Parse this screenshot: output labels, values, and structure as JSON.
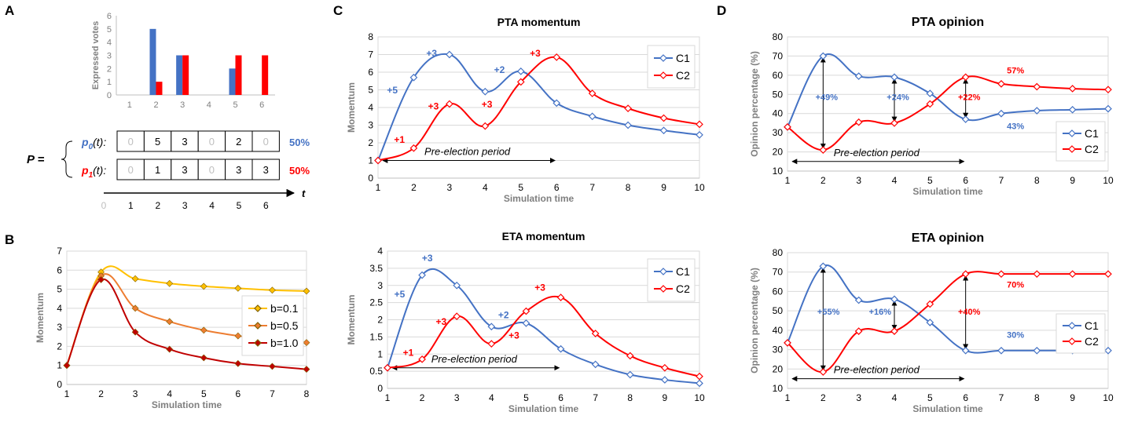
{
  "colors": {
    "blue": "#4472c4",
    "red": "#ff0000",
    "gold": "#ffc000",
    "orange": "#ed7d31",
    "darkred": "#c00000",
    "grid": "#d9d9d9",
    "gray": "#7f7f7f"
  },
  "panel_labels": [
    "A",
    "B",
    "C",
    "D"
  ],
  "panelA": {
    "matrix_label": "P =",
    "rows": [
      {
        "label": "p",
        "sub": "0",
        "arg": "(t):",
        "cells": [
          "0",
          "5",
          "3",
          "0",
          "2",
          "0"
        ],
        "pct": "50%",
        "color": "#4472c4"
      },
      {
        "label": "p",
        "sub": "1",
        "arg": "(t):",
        "cells": [
          "0",
          "1",
          "3",
          "0",
          "3",
          "3"
        ],
        "pct": "50%",
        "color": "#ff0000"
      }
    ],
    "time_axis": {
      "ticks": [
        "0",
        "1",
        "2",
        "3",
        "4",
        "5",
        "6"
      ],
      "label": "t"
    }
  },
  "pre_election_label": "Pre-election period",
  "chart_data": [
    {
      "id": "A",
      "type": "bar",
      "title": "",
      "xlabel": "",
      "ylabel": "Expressed votes",
      "categories": [
        "1",
        "2",
        "3",
        "4",
        "5",
        "6"
      ],
      "ylim": [
        0,
        6
      ],
      "yticks": [
        0,
        1,
        2,
        3,
        4,
        5,
        6
      ],
      "grid": false,
      "series": [
        {
          "color": "#4472c4",
          "values": [
            0,
            5,
            3,
            0,
            2,
            0
          ]
        },
        {
          "color": "#ff0000",
          "values": [
            0,
            1,
            3,
            0,
            3,
            3
          ]
        }
      ]
    },
    {
      "id": "B",
      "type": "line",
      "title": "",
      "xlabel": "Simulation time",
      "ylabel": "Momentum",
      "x": [
        1,
        2,
        3,
        4,
        5,
        6,
        7,
        8
      ],
      "xlim": [
        1,
        8
      ],
      "ylim": [
        0,
        7
      ],
      "yticks": [
        0,
        1,
        2,
        3,
        4,
        5,
        6,
        7
      ],
      "grid": true,
      "legend": "right",
      "series": [
        {
          "name": "b=0.1",
          "color": "#ffc000",
          "values": [
            1,
            5.9,
            5.55,
            5.3,
            5.15,
            5.05,
            4.95,
            4.9
          ]
        },
        {
          "name": "b=0.5",
          "color": "#ed7d31",
          "values": [
            1,
            5.7,
            4.0,
            3.3,
            2.85,
            2.55,
            2.35,
            2.2
          ]
        },
        {
          "name": "b=1.0",
          "color": "#c00000",
          "values": [
            1,
            5.5,
            2.75,
            1.85,
            1.4,
            1.1,
            0.95,
            0.8
          ]
        }
      ]
    },
    {
      "id": "C-top",
      "type": "line",
      "title": "PTA momentum",
      "xlabel": "Simulation time",
      "ylabel": "Momentum",
      "x": [
        1,
        2,
        3,
        4,
        5,
        6,
        7,
        8,
        9,
        10
      ],
      "xlim": [
        1,
        10
      ],
      "ylim": [
        0,
        8
      ],
      "yticks": [
        0,
        1,
        2,
        3,
        4,
        5,
        6,
        7,
        8
      ],
      "grid": true,
      "legend": "top-right",
      "series": [
        {
          "name": "C1",
          "color": "#4472c4",
          "values": [
            1,
            5.7,
            7.0,
            4.9,
            6.05,
            4.25,
            3.5,
            3.0,
            2.7,
            2.45
          ]
        },
        {
          "name": "C2",
          "color": "#ff0000",
          "values": [
            1,
            1.7,
            4.2,
            2.95,
            5.45,
            6.85,
            4.8,
            3.95,
            3.4,
            3.05
          ]
        }
      ],
      "annotations": [
        {
          "text": "+5",
          "color": "#4472c4",
          "x": 1.4,
          "y": 4.8
        },
        {
          "text": "+3",
          "color": "#4472c4",
          "x": 2.5,
          "y": 6.9
        },
        {
          "text": "+2",
          "color": "#4472c4",
          "x": 4.4,
          "y": 5.95
        },
        {
          "text": "+1",
          "color": "#ff0000",
          "x": 1.6,
          "y": 2.0
        },
        {
          "text": "+3",
          "color": "#ff0000",
          "x": 2.55,
          "y": 3.9
        },
        {
          "text": "+3",
          "color": "#ff0000",
          "x": 4.05,
          "y": 4.0
        },
        {
          "text": "+3",
          "color": "#ff0000",
          "x": 5.4,
          "y": 6.9
        }
      ]
    },
    {
      "id": "C-bottom",
      "type": "line",
      "title": "ETA momentum",
      "xlabel": "Simulation time",
      "ylabel": "Momentum",
      "x": [
        1,
        2,
        3,
        4,
        5,
        6,
        7,
        8,
        9,
        10
      ],
      "xlim": [
        1,
        10
      ],
      "ylim": [
        0,
        4
      ],
      "yticks": [
        0,
        0.5,
        1,
        1.5,
        2,
        2.5,
        3,
        3.5,
        4
      ],
      "grid": true,
      "legend": "top-right",
      "series": [
        {
          "name": "C1",
          "color": "#4472c4",
          "values": [
            0.6,
            3.3,
            3.0,
            1.8,
            1.9,
            1.15,
            0.7,
            0.4,
            0.25,
            0.15
          ]
        },
        {
          "name": "C2",
          "color": "#ff0000",
          "values": [
            0.6,
            0.85,
            2.1,
            1.3,
            2.25,
            2.65,
            1.6,
            0.95,
            0.6,
            0.35
          ]
        }
      ],
      "annotations": [
        {
          "text": "+5",
          "color": "#4472c4",
          "x": 1.35,
          "y": 2.65
        },
        {
          "text": "+3",
          "color": "#4472c4",
          "x": 2.15,
          "y": 3.7
        },
        {
          "text": "+2",
          "color": "#4472c4",
          "x": 4.35,
          "y": 2.05
        },
        {
          "text": "+1",
          "color": "#ff0000",
          "x": 1.6,
          "y": 0.95
        },
        {
          "text": "+3",
          "color": "#ff0000",
          "x": 2.55,
          "y": 1.85
        },
        {
          "text": "+3",
          "color": "#ff0000",
          "x": 4.65,
          "y": 1.45
        },
        {
          "text": "+3",
          "color": "#ff0000",
          "x": 5.4,
          "y": 2.85
        }
      ]
    },
    {
      "id": "D-top",
      "type": "line",
      "title": "PTA opinion",
      "xlabel": "Simulation time",
      "ylabel": "Opinion percentage (%)",
      "x": [
        1,
        2,
        3,
        4,
        5,
        6,
        7,
        8,
        9,
        10
      ],
      "xlim": [
        1,
        10
      ],
      "ylim": [
        10,
        80
      ],
      "yticks": [
        10,
        20,
        30,
        40,
        50,
        60,
        70,
        80
      ],
      "grid": true,
      "legend": "right",
      "series": [
        {
          "name": "C1",
          "color": "#4472c4",
          "values": [
            33,
            70,
            59.5,
            59,
            50.5,
            37,
            40,
            41.5,
            42,
            42.5
          ]
        },
        {
          "name": "C2",
          "color": "#ff0000",
          "values": [
            33,
            21,
            35.5,
            35,
            45,
            59,
            55.5,
            54,
            53,
            52.5
          ]
        }
      ],
      "annotations": [
        {
          "text": "+49%",
          "color": "#4472c4",
          "x": 2.1,
          "y": 47
        },
        {
          "text": "+24%",
          "color": "#4472c4",
          "x": 4.1,
          "y": 47
        },
        {
          "text": "+22%",
          "color": "#ff0000",
          "x": 6.1,
          "y": 47
        },
        {
          "text": "57%",
          "color": "#ff0000",
          "x": 7.4,
          "y": 61
        },
        {
          "text": "43%",
          "color": "#4472c4",
          "x": 7.4,
          "y": 32
        }
      ],
      "arrows": [
        [
          2,
          21,
          70
        ],
        [
          4,
          35,
          59
        ],
        [
          6,
          37,
          59
        ]
      ]
    },
    {
      "id": "D-bottom",
      "type": "line",
      "title": "ETA opinion",
      "xlabel": "Simulation time",
      "ylabel": "Opinion percentage (%)",
      "x": [
        1,
        2,
        3,
        4,
        5,
        6,
        7,
        8,
        9,
        10
      ],
      "xlim": [
        1,
        10
      ],
      "ylim": [
        10,
        80
      ],
      "yticks": [
        10,
        20,
        30,
        40,
        50,
        60,
        70,
        80
      ],
      "grid": true,
      "legend": "right",
      "series": [
        {
          "name": "C1",
          "color": "#4472c4",
          "values": [
            33.5,
            73,
            55.5,
            56,
            44,
            29.5,
            29.5,
            29.5,
            29.5,
            29.5
          ]
        },
        {
          "name": "C2",
          "color": "#ff0000",
          "values": [
            33.5,
            18.5,
            39.5,
            39.5,
            53.5,
            69,
            69,
            69,
            69,
            69
          ]
        }
      ],
      "annotations": [
        {
          "text": "+55%",
          "color": "#4472c4",
          "x": 2.15,
          "y": 48
        },
        {
          "text": "+16%",
          "color": "#4472c4",
          "x": 3.6,
          "y": 48
        },
        {
          "text": "+40%",
          "color": "#ff0000",
          "x": 6.1,
          "y": 48
        },
        {
          "text": "70%",
          "color": "#ff0000",
          "x": 7.4,
          "y": 62
        },
        {
          "text": "30%",
          "color": "#4472c4",
          "x": 7.4,
          "y": 36
        }
      ],
      "arrows": [
        [
          2,
          18.5,
          73
        ],
        [
          4,
          39.5,
          56
        ],
        [
          6,
          29.5,
          69
        ]
      ]
    }
  ]
}
